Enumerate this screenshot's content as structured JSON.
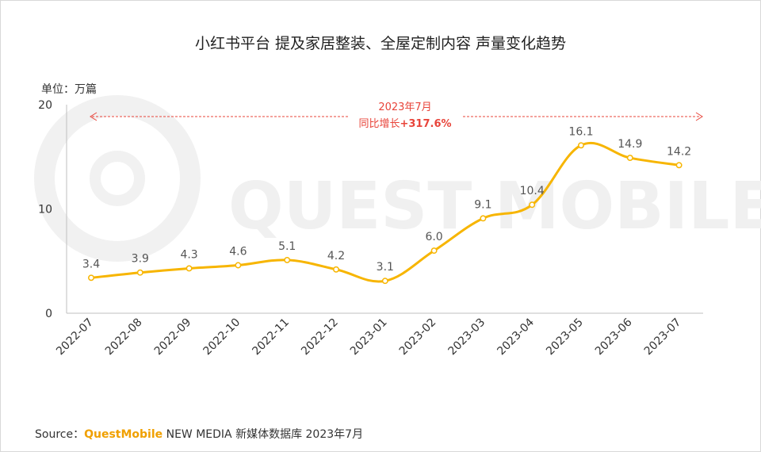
{
  "chart_data": {
    "type": "line",
    "title": "小红书平台 提及家居整装、全屋定制内容 声量变化趋势",
    "unit_label": "单位：万篇",
    "categories": [
      "2022-07",
      "2022-08",
      "2022-09",
      "2022-10",
      "2022-11",
      "2022-12",
      "2023-01",
      "2023-02",
      "2023-03",
      "2023-04",
      "2023-05",
      "2023-06",
      "2023-07"
    ],
    "series": [
      {
        "name": "声量",
        "values": [
          3.4,
          3.9,
          4.3,
          4.6,
          5.1,
          4.2,
          3.1,
          6.0,
          9.1,
          10.4,
          16.1,
          14.9,
          14.2
        ]
      }
    ],
    "yticks": [
      0,
      10,
      20
    ],
    "ylim": [
      0,
      20
    ],
    "line_color": "#f7b500",
    "annotation": {
      "line1": "2023年7月",
      "line2_prefix": "同比增长",
      "line2_value": "+317.6%",
      "color": "#e8443a"
    },
    "watermark": "QUEST MOBILE"
  },
  "footer": {
    "prefix": "Source：",
    "brand": "QuestMobile",
    "rest": " NEW MEDIA 新媒体数据库 2023年7月"
  }
}
